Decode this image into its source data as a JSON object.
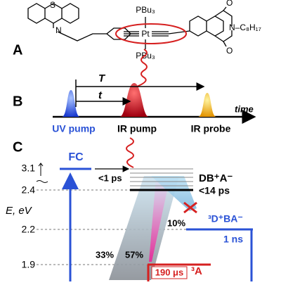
{
  "panels": {
    "a": "A",
    "b": "B",
    "c": "C"
  },
  "structure": {
    "phosphine_top": "PBu₃",
    "metal": "Pt",
    "phosphine_bottom": "PBu₃",
    "nitrogen": "N",
    "sulfur": "S",
    "oxygen_top": "O",
    "oxygen_bottom": "O",
    "imide": "N–C₈H₁₇"
  },
  "timeline": {
    "delay_long": "T",
    "delay_short": "t",
    "axis": "time",
    "uv_pump": "UV pump",
    "ir_pump": "IR pump",
    "ir_probe": "IR probe"
  },
  "energy": {
    "axis_label": "E, eV",
    "ticks": [
      "3.1",
      "2.4",
      "2.2",
      "1.9"
    ],
    "fc": "FC",
    "fc_time": "<1 ps",
    "db_state": "DB⁺A⁻",
    "db_time": "<14 ps",
    "d_state": "³D⁺BA⁻",
    "d_yield": "10%",
    "d_time": "1 ns",
    "yield_left": "33%",
    "yield_a": "57%",
    "a_time": "190 μs",
    "a_state": "³A"
  }
}
